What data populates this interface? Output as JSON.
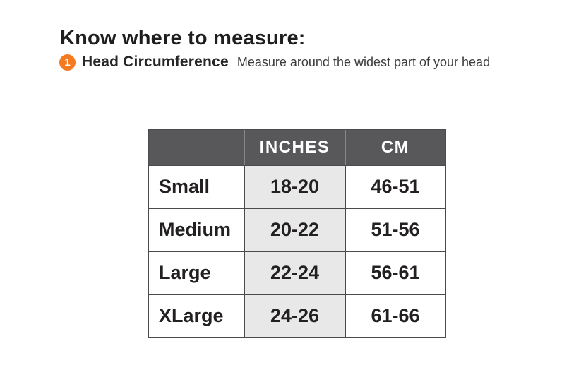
{
  "title": "Know where to measure:",
  "measurement": {
    "number": "1",
    "name": "Head Circumference",
    "description": "Measure around the widest part of your head"
  },
  "size_table": {
    "headers": {
      "label": "",
      "inches": "INCHES",
      "cm": "CM"
    },
    "rows": [
      {
        "size": "Small",
        "inches": "18-20",
        "cm": "46-51"
      },
      {
        "size": "Medium",
        "inches": "20-22",
        "cm": "51-56"
      },
      {
        "size": "Large",
        "inches": "22-24",
        "cm": "56-61"
      },
      {
        "size": "XLarge",
        "inches": "24-26",
        "cm": "61-66"
      }
    ]
  },
  "colors": {
    "accent_orange": "#F47B20",
    "table_header_bg": "#58585B",
    "table_border": "#4B4B4D",
    "header_divider": "#87878A",
    "inches_column_bg": "#E8E8E8",
    "header_text": "#FFFFFF",
    "body_text": "#232021"
  }
}
